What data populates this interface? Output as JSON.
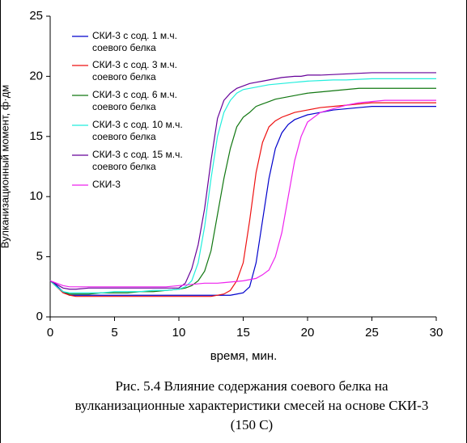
{
  "chart_data": {
    "type": "line",
    "ylabel": "Вулканизационный момент, ф·дм",
    "xlabel": "время, мин.",
    "caption": "Рис. 5.4 Влияние содержания соевого белка на вулканизационные характеристики смесей на основе СКИ-3 (150 С)",
    "x": [
      0,
      0.5,
      1,
      1.5,
      2,
      3,
      4,
      5,
      6,
      7,
      8,
      9,
      10,
      10.5,
      11,
      11.5,
      12,
      12.5,
      13,
      13.5,
      14,
      14.5,
      15,
      15.5,
      16,
      16.5,
      17,
      17.5,
      18,
      18.5,
      19,
      19.5,
      20,
      21,
      22,
      23,
      24,
      25,
      26,
      27,
      28,
      29,
      30
    ],
    "xlim": [
      0,
      30
    ],
    "xticks": [
      0,
      5,
      10,
      15,
      20,
      25,
      30
    ],
    "ylim": [
      0,
      25
    ],
    "yticks": [
      0,
      5,
      10,
      15,
      20,
      25
    ],
    "legend": "upper left",
    "series": [
      {
        "name": "СКИ-3 с сод. 1 м.ч. соевого белка",
        "color": "#0000cc",
        "values": [
          3,
          2.6,
          2.1,
          1.8,
          1.8,
          1.8,
          1.8,
          1.8,
          1.8,
          1.8,
          1.8,
          1.8,
          1.8,
          1.8,
          1.8,
          1.8,
          1.8,
          1.8,
          1.8,
          1.8,
          1.8,
          1.9,
          2.0,
          2.5,
          4.5,
          8,
          11.5,
          14,
          15.3,
          16,
          16.4,
          16.6,
          16.8,
          17,
          17.2,
          17.3,
          17.4,
          17.5,
          17.5,
          17.5,
          17.5,
          17.5,
          17.5
        ]
      },
      {
        "name": "СКИ-3 с сод. 3 м.ч. соевого белка",
        "color": "#ee1111",
        "values": [
          3,
          2.5,
          2.0,
          1.8,
          1.7,
          1.7,
          1.7,
          1.7,
          1.7,
          1.7,
          1.7,
          1.7,
          1.7,
          1.7,
          1.7,
          1.7,
          1.7,
          1.7,
          1.8,
          1.9,
          2.2,
          3,
          4.5,
          8,
          12,
          14.5,
          15.8,
          16.3,
          16.6,
          16.8,
          17,
          17.1,
          17.2,
          17.4,
          17.5,
          17.6,
          17.7,
          17.8,
          17.8,
          17.8,
          17.8,
          17.8,
          17.8
        ]
      },
      {
        "name": "СКИ-3 с сод. 6 м.ч. соевого белка",
        "color": "#117711",
        "values": [
          3,
          2.5,
          2.1,
          1.9,
          1.9,
          1.9,
          2.0,
          2.0,
          2.0,
          2.1,
          2.1,
          2.2,
          2.3,
          2.4,
          2.6,
          3,
          3.8,
          5.5,
          8.5,
          11.5,
          14,
          15.8,
          16.6,
          17,
          17.5,
          17.7,
          17.9,
          18.1,
          18.2,
          18.3,
          18.4,
          18.5,
          18.6,
          18.7,
          18.8,
          18.9,
          19,
          19,
          19,
          19,
          19,
          19,
          19
        ]
      },
      {
        "name": "СКИ-3 с сод. 10 м.ч. соевого белка",
        "color": "#22eedd",
        "values": [
          3,
          2.5,
          2.1,
          2.0,
          2.0,
          2.0,
          2.0,
          2.1,
          2.1,
          2.1,
          2.2,
          2.2,
          2.3,
          2.5,
          3,
          4.5,
          7.5,
          11.5,
          15,
          17,
          18,
          18.6,
          18.9,
          19,
          19.1,
          19.2,
          19.3,
          19.35,
          19.4,
          19.45,
          19.5,
          19.55,
          19.6,
          19.65,
          19.7,
          19.7,
          19.75,
          19.8,
          19.8,
          19.8,
          19.8,
          19.8,
          19.8
        ]
      },
      {
        "name": "СКИ-3 с сод. 15 м.ч. соевого белка",
        "color": "#660099",
        "values": [
          3,
          2.7,
          2.4,
          2.3,
          2.3,
          2.4,
          2.4,
          2.4,
          2.4,
          2.4,
          2.4,
          2.4,
          2.4,
          2.8,
          4,
          6,
          9,
          13,
          16.5,
          18,
          18.6,
          19,
          19.2,
          19.4,
          19.5,
          19.6,
          19.7,
          19.8,
          19.9,
          19.95,
          20,
          20,
          20.1,
          20.1,
          20.15,
          20.2,
          20.25,
          20.3,
          20.3,
          20.3,
          20.3,
          20.3,
          20.3
        ]
      },
      {
        "name": "СКИ-3",
        "color": "#ee22ee",
        "values": [
          3,
          2.8,
          2.6,
          2.5,
          2.5,
          2.5,
          2.5,
          2.5,
          2.5,
          2.5,
          2.5,
          2.5,
          2.6,
          2.65,
          2.7,
          2.75,
          2.8,
          2.8,
          2.8,
          2.85,
          2.9,
          2.95,
          3.0,
          3.1,
          3.2,
          3.5,
          3.9,
          5,
          7,
          10,
          13,
          15,
          16.2,
          17,
          17.3,
          17.6,
          17.8,
          17.9,
          18,
          18,
          18,
          18,
          18
        ]
      }
    ]
  }
}
